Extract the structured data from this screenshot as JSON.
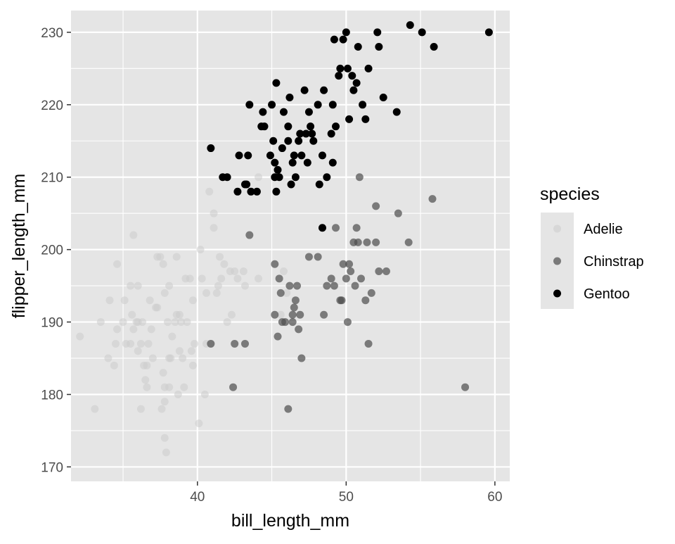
{
  "chart_data": {
    "type": "scatter",
    "title": "",
    "xlabel": "bill_length_mm",
    "ylabel": "flipper_length_mm",
    "xlim": [
      31.5,
      61
    ],
    "ylim": [
      168,
      233
    ],
    "x_ticks": [
      40,
      50,
      60
    ],
    "y_ticks": [
      170,
      180,
      190,
      200,
      210,
      220,
      230
    ],
    "grid": true,
    "legend_position": "right",
    "legend_title": "species",
    "colors": {
      "panel_background": "#e5e5e5",
      "grid": "#ffffff",
      "Adelie": "#cccccc",
      "Chinstrap": "#4d4d4d",
      "Gentoo": "#000000"
    },
    "series": [
      {
        "name": "Adelie",
        "point_alpha": 0.55,
        "points": [
          [
            32.1,
            188
          ],
          [
            33.1,
            178
          ],
          [
            33.5,
            190
          ],
          [
            34.0,
            185
          ],
          [
            34.1,
            193
          ],
          [
            34.4,
            184
          ],
          [
            34.5,
            187
          ],
          [
            34.6,
            198
          ],
          [
            34.6,
            189
          ],
          [
            35.0,
            190
          ],
          [
            35.1,
            193
          ],
          [
            35.2,
            187
          ],
          [
            35.5,
            195
          ],
          [
            35.5,
            187
          ],
          [
            35.6,
            191
          ],
          [
            35.7,
            202
          ],
          [
            35.7,
            189
          ],
          [
            35.9,
            190
          ],
          [
            36.0,
            195
          ],
          [
            36.0,
            186
          ],
          [
            36.0,
            190
          ],
          [
            36.2,
            187
          ],
          [
            36.2,
            178
          ],
          [
            36.3,
            190
          ],
          [
            36.4,
            184
          ],
          [
            36.5,
            182
          ],
          [
            36.6,
            184
          ],
          [
            36.6,
            181
          ],
          [
            36.7,
            187
          ],
          [
            36.8,
            193
          ],
          [
            36.9,
            189
          ],
          [
            37.0,
            185
          ],
          [
            37.2,
            192
          ],
          [
            37.3,
            199
          ],
          [
            37.3,
            192
          ],
          [
            37.5,
            199
          ],
          [
            37.6,
            178
          ],
          [
            37.7,
            183
          ],
          [
            37.7,
            198
          ],
          [
            37.8,
            179
          ],
          [
            37.8,
            181
          ],
          [
            37.8,
            174
          ],
          [
            37.8,
            194
          ],
          [
            37.9,
            172
          ],
          [
            38.0,
            190
          ],
          [
            38.1,
            181
          ],
          [
            38.1,
            195
          ],
          [
            38.1,
            185
          ],
          [
            38.2,
            185
          ],
          [
            38.3,
            188
          ],
          [
            38.5,
            190
          ],
          [
            38.6,
            191
          ],
          [
            38.6,
            199
          ],
          [
            38.7,
            180
          ],
          [
            38.8,
            191
          ],
          [
            38.8,
            186
          ],
          [
            38.9,
            190
          ],
          [
            39.0,
            185
          ],
          [
            39.1,
            181
          ],
          [
            39.2,
            196
          ],
          [
            39.3,
            190
          ],
          [
            39.5,
            196
          ],
          [
            39.6,
            186
          ],
          [
            39.7,
            184
          ],
          [
            39.7,
            193
          ],
          [
            39.8,
            187
          ],
          [
            40.1,
            176
          ],
          [
            40.2,
            200
          ],
          [
            40.3,
            196
          ],
          [
            40.5,
            180
          ],
          [
            40.6,
            187
          ],
          [
            40.6,
            194
          ],
          [
            40.8,
            208
          ],
          [
            40.9,
            187
          ],
          [
            41.1,
            205
          ],
          [
            41.1,
            203
          ],
          [
            41.3,
            194
          ],
          [
            41.4,
            195
          ],
          [
            41.5,
            199
          ],
          [
            41.6,
            196
          ],
          [
            41.8,
            198
          ],
          [
            42.0,
            190
          ],
          [
            42.2,
            197
          ],
          [
            42.3,
            191
          ],
          [
            42.5,
            197
          ],
          [
            42.7,
            196
          ],
          [
            43.1,
            197
          ],
          [
            43.2,
            195
          ],
          [
            44.1,
            196
          ],
          [
            44.1,
            210
          ],
          [
            45.6,
            191
          ],
          [
            45.8,
            197
          ],
          [
            46.0,
            194
          ]
        ]
      },
      {
        "name": "Chinstrap",
        "point_alpha": 0.7,
        "points": [
          [
            40.9,
            187
          ],
          [
            42.4,
            181
          ],
          [
            42.5,
            187
          ],
          [
            43.2,
            187
          ],
          [
            43.5,
            202
          ],
          [
            45.2,
            198
          ],
          [
            45.2,
            191
          ],
          [
            45.4,
            188
          ],
          [
            45.5,
            196
          ],
          [
            45.6,
            194
          ],
          [
            45.7,
            190
          ],
          [
            45.9,
            190
          ],
          [
            46.1,
            178
          ],
          [
            46.2,
            195
          ],
          [
            46.4,
            190
          ],
          [
            46.4,
            191
          ],
          [
            46.5,
            192
          ],
          [
            46.6,
            193
          ],
          [
            46.7,
            195
          ],
          [
            46.8,
            189
          ],
          [
            46.9,
            191
          ],
          [
            47.0,
            185
          ],
          [
            47.5,
            199
          ],
          [
            48.1,
            199
          ],
          [
            48.5,
            191
          ],
          [
            48.7,
            195
          ],
          [
            49.0,
            196
          ],
          [
            49.2,
            195
          ],
          [
            49.3,
            203
          ],
          [
            49.6,
            193
          ],
          [
            49.7,
            193
          ],
          [
            49.8,
            198
          ],
          [
            50.0,
            196
          ],
          [
            50.1,
            190
          ],
          [
            50.2,
            198
          ],
          [
            50.3,
            197
          ],
          [
            50.5,
            201
          ],
          [
            50.6,
            195
          ],
          [
            50.7,
            203
          ],
          [
            50.8,
            201
          ],
          [
            50.9,
            210
          ],
          [
            51.0,
            196
          ],
          [
            51.3,
            193
          ],
          [
            51.4,
            201
          ],
          [
            51.5,
            187
          ],
          [
            51.7,
            194
          ],
          [
            52.0,
            206
          ],
          [
            52.0,
            201
          ],
          [
            52.2,
            197
          ],
          [
            52.7,
            197
          ],
          [
            53.5,
            205
          ],
          [
            54.2,
            201
          ],
          [
            55.8,
            207
          ],
          [
            58.0,
            181
          ]
        ]
      },
      {
        "name": "Gentoo",
        "point_alpha": 1,
        "points": [
          [
            40.9,
            214
          ],
          [
            41.7,
            210
          ],
          [
            42.0,
            210
          ],
          [
            42.7,
            208
          ],
          [
            42.8,
            213
          ],
          [
            43.2,
            209
          ],
          [
            43.3,
            209
          ],
          [
            43.4,
            213
          ],
          [
            43.5,
            220
          ],
          [
            43.6,
            208
          ],
          [
            44.0,
            208
          ],
          [
            44.3,
            217
          ],
          [
            44.4,
            219
          ],
          [
            44.5,
            217
          ],
          [
            44.9,
            213
          ],
          [
            45.0,
            220
          ],
          [
            45.1,
            215
          ],
          [
            45.2,
            212
          ],
          [
            45.3,
            208
          ],
          [
            45.4,
            211
          ],
          [
            45.5,
            210
          ],
          [
            45.7,
            214
          ],
          [
            45.8,
            219
          ],
          [
            46.1,
            215
          ],
          [
            46.2,
            221
          ],
          [
            46.3,
            209
          ],
          [
            46.4,
            212
          ],
          [
            46.5,
            213
          ],
          [
            46.6,
            210
          ],
          [
            46.8,
            215
          ],
          [
            46.9,
            216
          ],
          [
            47.0,
            213
          ],
          [
            47.2,
            222
          ],
          [
            47.3,
            216
          ],
          [
            47.4,
            212
          ],
          [
            47.5,
            219
          ],
          [
            47.6,
            217
          ],
          [
            47.7,
            216
          ],
          [
            47.8,
            215
          ],
          [
            48.1,
            220
          ],
          [
            48.2,
            209
          ],
          [
            48.4,
            213
          ],
          [
            48.5,
            222
          ],
          [
            48.7,
            210
          ],
          [
            49.0,
            216
          ],
          [
            49.1,
            220
          ],
          [
            49.2,
            229
          ],
          [
            49.3,
            217
          ],
          [
            49.5,
            224
          ],
          [
            49.6,
            225
          ],
          [
            49.8,
            229
          ],
          [
            50.0,
            230
          ],
          [
            50.1,
            225
          ],
          [
            50.2,
            218
          ],
          [
            50.4,
            224
          ],
          [
            50.5,
            222
          ],
          [
            50.7,
            223
          ],
          [
            50.8,
            228
          ],
          [
            51.1,
            220
          ],
          [
            51.3,
            218
          ],
          [
            51.5,
            225
          ],
          [
            52.1,
            230
          ],
          [
            52.2,
            228
          ],
          [
            52.5,
            221
          ],
          [
            53.4,
            219
          ],
          [
            54.3,
            231
          ],
          [
            55.1,
            230
          ],
          [
            55.9,
            228
          ],
          [
            59.6,
            230
          ],
          [
            48.4,
            203
          ],
          [
            45.3,
            223
          ],
          [
            45.2,
            210
          ],
          [
            46.1,
            217
          ],
          [
            49.1,
            212
          ]
        ]
      }
    ]
  }
}
